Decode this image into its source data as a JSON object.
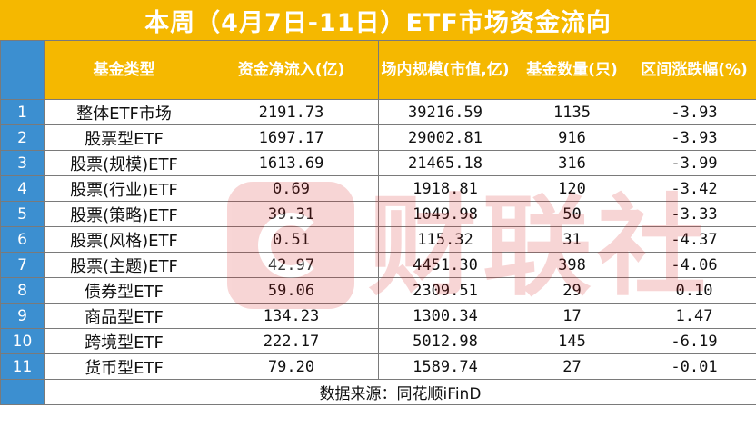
{
  "title": "本周（4月7日-11日）ETF市场资金流向",
  "headers": {
    "index": "",
    "type": "基金类型",
    "net_inflow": "资金净流入(亿)",
    "scale": "场内规模(市值,亿)",
    "count": "基金数量(只)",
    "change": "区间涨跌幅(%)"
  },
  "rows": [
    {
      "idx": "1",
      "type": "整体ETF市场",
      "net_inflow": "2191.73",
      "scale": "39216.59",
      "count": "1135",
      "change": "-3.93"
    },
    {
      "idx": "2",
      "type": "股票型ETF",
      "net_inflow": "1697.17",
      "scale": "29002.81",
      "count": "916",
      "change": "-3.93"
    },
    {
      "idx": "3",
      "type": "股票(规模)ETF",
      "net_inflow": "1613.69",
      "scale": "21465.18",
      "count": "316",
      "change": "-3.99"
    },
    {
      "idx": "4",
      "type": "股票(行业)ETF",
      "net_inflow": "0.69",
      "scale": "1918.81",
      "count": "120",
      "change": "-3.42"
    },
    {
      "idx": "5",
      "type": "股票(策略)ETF",
      "net_inflow": "39.31",
      "scale": "1049.98",
      "count": "50",
      "change": "-3.33"
    },
    {
      "idx": "6",
      "type": "股票(风格)ETF",
      "net_inflow": "0.51",
      "scale": "115.32",
      "count": "31",
      "change": "-4.37"
    },
    {
      "idx": "7",
      "type": "股票(主题)ETF",
      "net_inflow": "42.97",
      "scale": "4451.30",
      "count": "398",
      "change": "-4.06"
    },
    {
      "idx": "8",
      "type": "债券型ETF",
      "net_inflow": "59.06",
      "scale": "2309.51",
      "count": "29",
      "change": "0.10"
    },
    {
      "idx": "9",
      "type": "商品型ETF",
      "net_inflow": "134.23",
      "scale": "1300.34",
      "count": "17",
      "change": "1.47"
    },
    {
      "idx": "10",
      "type": "跨境型ETF",
      "net_inflow": "222.17",
      "scale": "5012.98",
      "count": "145",
      "change": "-6.19"
    },
    {
      "idx": "11",
      "type": "货币型ETF",
      "net_inflow": "79.20",
      "scale": "1589.74",
      "count": "27",
      "change": "-0.01"
    }
  ],
  "source": "数据来源：同花顺iFinD",
  "watermark": "财联社",
  "colors": {
    "accent": "#f5b800",
    "index_col": "#3c8fd0",
    "watermark": "#d81e1e"
  }
}
